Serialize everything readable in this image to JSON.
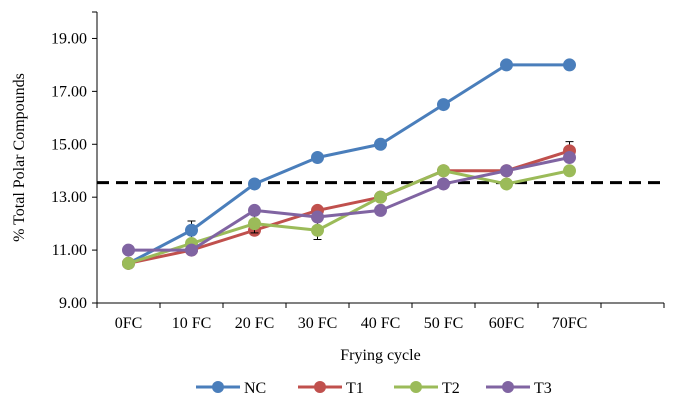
{
  "chart_data": {
    "type": "line",
    "xlabel": "Frying cycle",
    "ylabel": "% Total Polar Compounds",
    "ylim": [
      9,
      20
    ],
    "yticks": [
      "9.00",
      "11.00",
      "13.00",
      "15.00",
      "17.00",
      "19.00"
    ],
    "ytick_values": [
      9,
      11,
      13,
      15,
      17,
      19
    ],
    "categories": [
      "0FC",
      "10 FC",
      "20 FC",
      "30 FC",
      "40 FC",
      "50 FC",
      "60FC",
      "70FC"
    ],
    "extra_x_slots": 1,
    "reference_line": {
      "y": 13.55,
      "style": "dashed",
      "color": "#000000"
    },
    "series": [
      {
        "name": "NC",
        "color": "#4a7ebb",
        "values": [
          10.5,
          11.75,
          13.5,
          14.5,
          15.0,
          16.5,
          18.0,
          18.0
        ],
        "errors": [
          0,
          0.35,
          0,
          0,
          0,
          0,
          0,
          0
        ]
      },
      {
        "name": "T1",
        "color": "#c0504d",
        "values": [
          10.5,
          11.0,
          11.75,
          12.5,
          13.0,
          14.0,
          14.0,
          14.75
        ],
        "errors": [
          0,
          0,
          0,
          0,
          0,
          0,
          0,
          0.35
        ]
      },
      {
        "name": "T2",
        "color": "#9bbb59",
        "values": [
          10.5,
          11.25,
          12.0,
          11.75,
          13.0,
          14.0,
          13.5,
          14.0
        ],
        "errors": [
          0,
          0,
          0.35,
          0.35,
          0,
          0,
          0,
          0
        ]
      },
      {
        "name": "T3",
        "color": "#8064a2",
        "values": [
          11.0,
          11.0,
          12.5,
          12.25,
          12.5,
          13.5,
          14.0,
          14.5
        ],
        "errors": [
          0,
          0,
          0,
          0,
          0,
          0,
          0,
          0
        ]
      }
    ],
    "legend_position": "bottom",
    "grid": false
  }
}
